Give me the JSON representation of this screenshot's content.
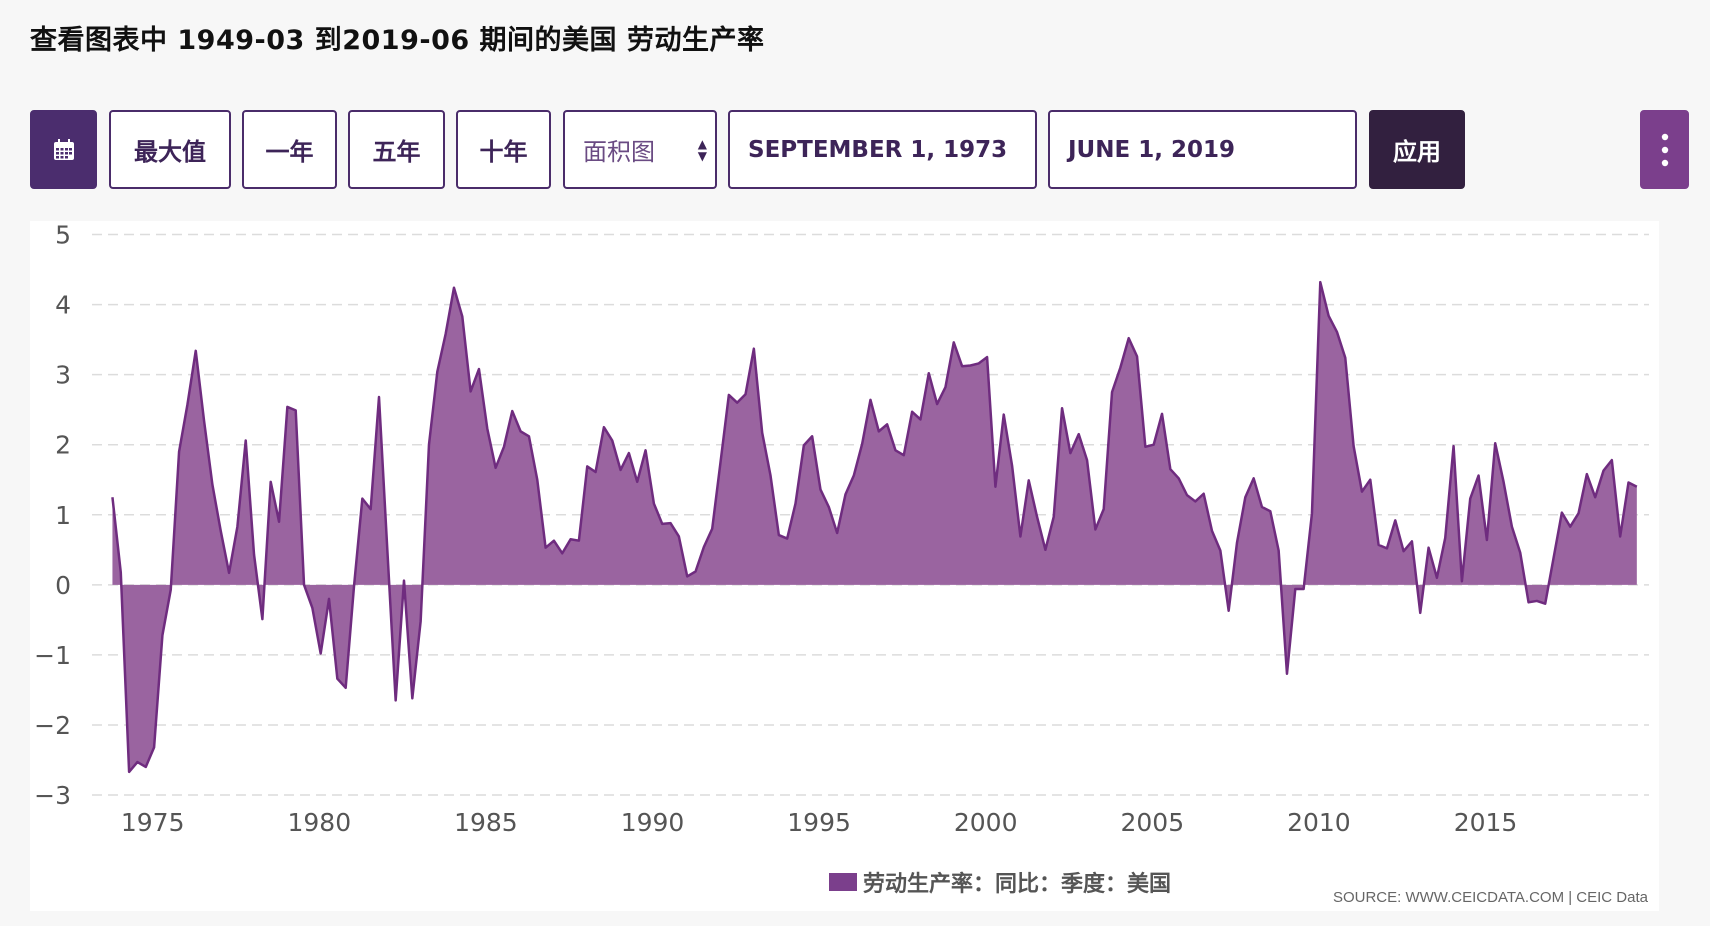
{
  "header": {
    "title": "查看图表中 1949-03 到2019-06 期间的美国 劳动生产率"
  },
  "toolbar": {
    "calendar_icon": "calendar-icon",
    "ranges": [
      "最大值",
      "一年",
      "五年",
      "十年"
    ],
    "chart_type": "面积图",
    "start_date": "SEPTEMBER 1, 1973",
    "end_date": "JUNE 1, 2019",
    "apply": "应用",
    "menu_icon": "vertical-dots-icon"
  },
  "colors": {
    "fill": "#9a64a0",
    "line": "#6f2c7f",
    "accent": "#4b2d6e"
  },
  "chart_data": {
    "type": "area",
    "frequency": "quarterly",
    "start": "1973-09",
    "end": "2019-06",
    "ylim": [
      -3,
      5
    ],
    "yticks": [
      5,
      4,
      3,
      2,
      1,
      0,
      -1,
      -2,
      -3
    ],
    "xticks": [
      "1975",
      "1980",
      "1985",
      "1990",
      "1995",
      "2000",
      "2005",
      "2010",
      "2015"
    ],
    "grid": true,
    "legend_position": "bottom",
    "series": [
      {
        "name": "劳动生产率：同比：季度：美国",
        "values": [
          1.25,
          0.18,
          -2.67,
          -2.53,
          -2.6,
          -2.32,
          -0.72,
          -0.07,
          1.9,
          2.57,
          3.34,
          2.34,
          1.43,
          0.77,
          0.17,
          0.83,
          2.06,
          0.43,
          -0.49,
          1.47,
          0.9,
          2.54,
          2.49,
          0,
          -0.33,
          -0.98,
          -0.2,
          -1.34,
          -1.47,
          -0.02,
          1.23,
          1.08,
          2.68,
          0.5,
          -1.65,
          0.06,
          -1.62,
          -0.52,
          2.0,
          3.04,
          3.58,
          4.24,
          3.83,
          2.76,
          3.08,
          2.23,
          1.67,
          1.97,
          2.48,
          2.19,
          2.12,
          1.5,
          0.53,
          0.63,
          0.45,
          0.65,
          0.63,
          1.69,
          1.61,
          2.25,
          2.06,
          1.64,
          1.88,
          1.47,
          1.92,
          1.16,
          0.87,
          0.88,
          0.69,
          0.12,
          0.19,
          0.54,
          0.8,
          1.75,
          2.71,
          2.6,
          2.72,
          3.37,
          2.17,
          1.56,
          0.71,
          0.66,
          1.16,
          1.99,
          2.12,
          1.36,
          1.11,
          0.74,
          1.29,
          1.56,
          2.01,
          2.64,
          2.19,
          2.29,
          1.92,
          1.85,
          2.47,
          2.36,
          3.02,
          2.58,
          2.82,
          3.46,
          3.12,
          3.13,
          3.16,
          3.25,
          1.4,
          2.43,
          1.7,
          0.69,
          1.49,
          0.97,
          0.5,
          0.97,
          2.52,
          1.88,
          2.15,
          1.78,
          0.79,
          1.08,
          2.75,
          3.1,
          3.52,
          3.26,
          1.97,
          2.0,
          2.44,
          1.65,
          1.52,
          1.28,
          1.19,
          1.3,
          0.77,
          0.49,
          -0.37,
          0.6,
          1.25,
          1.52,
          1.11,
          1.05,
          0.49,
          -1.27,
          -0.06,
          -0.06,
          1.02,
          4.32,
          3.84,
          3.61,
          3.24,
          1.98,
          1.33,
          1.5,
          0.57,
          0.52,
          0.92,
          0.48,
          0.62,
          -0.4,
          0.53,
          0.1,
          0.67,
          1.98,
          0.05,
          1.23,
          1.56,
          0.64,
          2.02,
          1.47,
          0.83,
          0.46,
          -0.25,
          -0.23,
          -0.27,
          0.38,
          1.03,
          0.83,
          1.02,
          1.58,
          1.25,
          1.63,
          1.78,
          0.69,
          1.46,
          1.4
        ]
      }
    ],
    "source": "SOURCE: WWW.CEICDATA.COM | CEIC Data"
  }
}
